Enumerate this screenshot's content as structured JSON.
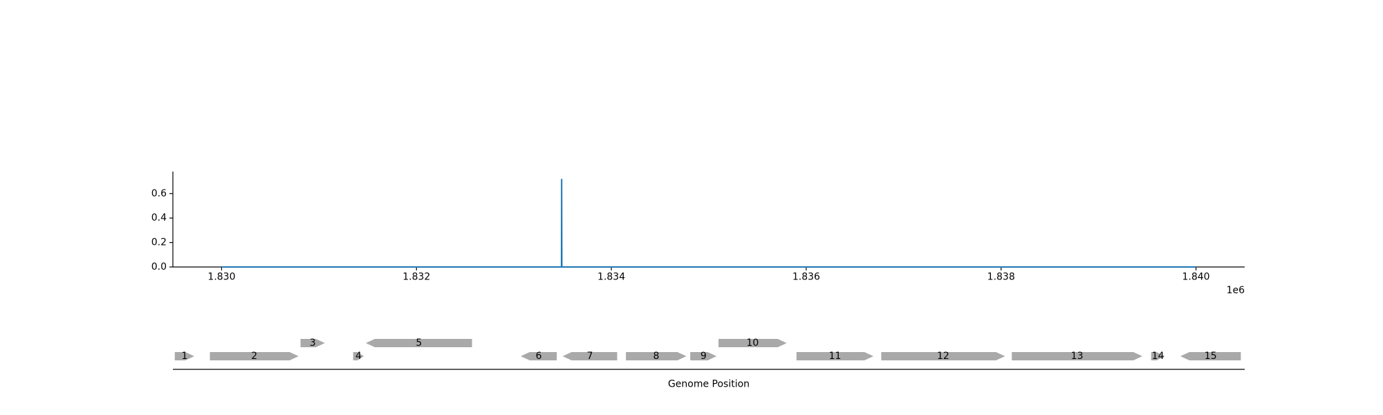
{
  "chart_data": [
    {
      "type": "line",
      "series": [
        {
          "x": [
            1830000,
            1833488,
            1833490,
            1833492,
            1840000
          ],
          "y": [
            0.0,
            0.0,
            0.72,
            0.0,
            0.0
          ]
        }
      ],
      "xlim": [
        1829500,
        1840500
      ],
      "ylim": [
        0,
        0.78
      ],
      "yticks": [
        0.0,
        0.2,
        0.4,
        0.6
      ],
      "ytick_labels": [
        "0.0",
        "0.2",
        "0.4",
        "0.6"
      ],
      "xticks": [
        1830000,
        1832000,
        1834000,
        1836000,
        1838000,
        1840000
      ],
      "xtick_labels": [
        "1.830",
        "1.832",
        "1.834",
        "1.836",
        "1.838",
        "1.840"
      ],
      "x_offset_label": "1e6",
      "line_color": "#1f77b4",
      "grid": false
    },
    {
      "type": "gene-map",
      "xlabel": "Genome Position",
      "xlim": [
        1829500,
        1840500
      ],
      "gene_color": "#a9a9a9",
      "genes": [
        {
          "label": "1",
          "start": 1829520,
          "end": 1829720,
          "strand": 1,
          "track": 0
        },
        {
          "label": "2",
          "start": 1829880,
          "end": 1830790,
          "strand": 1,
          "track": 0
        },
        {
          "label": "3",
          "start": 1830810,
          "end": 1831060,
          "strand": 1,
          "track": 1
        },
        {
          "label": "4",
          "start": 1831350,
          "end": 1831460,
          "strand": 1,
          "track": 0
        },
        {
          "label": "5",
          "start": 1831480,
          "end": 1832570,
          "strand": -1,
          "track": 1
        },
        {
          "label": "6",
          "start": 1833070,
          "end": 1833440,
          "strand": -1,
          "track": 0
        },
        {
          "label": "7",
          "start": 1833500,
          "end": 1834060,
          "strand": -1,
          "track": 0
        },
        {
          "label": "8",
          "start": 1834150,
          "end": 1834770,
          "strand": 1,
          "track": 0
        },
        {
          "label": "9",
          "start": 1834810,
          "end": 1835080,
          "strand": 1,
          "track": 0
        },
        {
          "label": "10",
          "start": 1835100,
          "end": 1835800,
          "strand": 1,
          "track": 1
        },
        {
          "label": "11",
          "start": 1835900,
          "end": 1836690,
          "strand": 1,
          "track": 0
        },
        {
          "label": "12",
          "start": 1836770,
          "end": 1838040,
          "strand": 1,
          "track": 0
        },
        {
          "label": "13",
          "start": 1838110,
          "end": 1839450,
          "strand": 1,
          "track": 0
        },
        {
          "label": "14",
          "start": 1839540,
          "end": 1839680,
          "strand": 1,
          "track": 0
        },
        {
          "label": "15",
          "start": 1839840,
          "end": 1840460,
          "strand": -1,
          "track": 0
        }
      ]
    }
  ]
}
